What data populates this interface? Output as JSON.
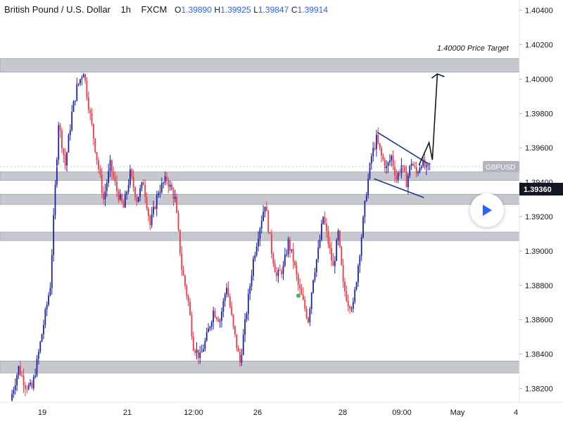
{
  "header": {
    "symbol": "British Pound / U.S. Dollar",
    "interval": "1h",
    "exchange": "FXCM",
    "o_label": "O",
    "o_value": "1.39890",
    "h_label": "H",
    "h_value": "1.39925",
    "l_label": "L",
    "l_value": "1.39847",
    "c_label": "C",
    "c_value": "1.39914"
  },
  "colors": {
    "up": "#1e22aa",
    "down": "#f23645",
    "zone": "#b2b5be",
    "trend": "#1e3a8a",
    "price_tag": "#131722",
    "symbol_tag": "#b2b5be"
  },
  "chart_data": {
    "type": "candlestick",
    "ylim": [
      1.3812,
      1.4046
    ],
    "y_ticks": [
      "1.40400",
      "1.40200",
      "1.40000",
      "1.39800",
      "1.39600",
      "1.39400",
      "1.39200",
      "1.39000",
      "1.38800",
      "1.38600",
      "1.38400",
      "1.38200"
    ],
    "x_ticks": [
      "19",
      "21",
      "12:00",
      "26",
      "28",
      "09:00",
      "May",
      "4"
    ],
    "symbol_tag": "GBPUSD",
    "last_price_label": "1.39360",
    "annotation": "1.40000 Price Target",
    "green_dot_value": 1.3874,
    "zones": [
      {
        "y1": 1.4012,
        "y2": 1.4004
      },
      {
        "y1": 1.3946,
        "y2": 1.3941
      },
      {
        "y1": 1.3933,
        "y2": 1.3927
      },
      {
        "y1": 1.3911,
        "y2": 1.3906
      },
      {
        "y1": 1.3836,
        "y2": 1.3829
      }
    ],
    "path": [
      [
        0,
        1.3813
      ],
      [
        5,
        1.3832
      ],
      [
        9,
        1.3822
      ],
      [
        13,
        1.382
      ],
      [
        16,
        1.3835
      ],
      [
        24,
        1.388
      ],
      [
        29,
        1.3975
      ],
      [
        33,
        1.395
      ],
      [
        37,
        1.398
      ],
      [
        40,
        1.3995
      ],
      [
        44,
        1.4005
      ],
      [
        47,
        1.3985
      ],
      [
        51,
        1.396
      ],
      [
        56,
        1.393
      ],
      [
        60,
        1.395
      ],
      [
        64,
        1.3935
      ],
      [
        68,
        1.3925
      ],
      [
        72,
        1.3945
      ],
      [
        76,
        1.393
      ],
      [
        80,
        1.394
      ],
      [
        84,
        1.3915
      ],
      [
        89,
        1.3935
      ],
      [
        94,
        1.3942
      ],
      [
        99,
        1.393
      ],
      [
        103,
        1.389
      ],
      [
        107,
        1.387
      ],
      [
        110,
        1.3845
      ],
      [
        114,
        1.3838
      ],
      [
        118,
        1.385
      ],
      [
        122,
        1.3865
      ],
      [
        126,
        1.386
      ],
      [
        130,
        1.388
      ],
      [
        134,
        1.3855
      ],
      [
        138,
        1.3835
      ],
      [
        142,
        1.3865
      ],
      [
        146,
        1.3895
      ],
      [
        149,
        1.391
      ],
      [
        153,
        1.3928
      ],
      [
        157,
        1.39
      ],
      [
        160,
        1.3885
      ],
      [
        164,
        1.389
      ],
      [
        167,
        1.3905
      ],
      [
        170,
        1.3895
      ],
      [
        173,
        1.388
      ],
      [
        176,
        1.387
      ],
      [
        179,
        1.386
      ],
      [
        182,
        1.3885
      ],
      [
        185,
        1.39
      ],
      [
        188,
        1.392
      ],
      [
        191,
        1.3905
      ],
      [
        194,
        1.389
      ],
      [
        197,
        1.391
      ],
      [
        200,
        1.388
      ],
      [
        203,
        1.387
      ],
      [
        206,
        1.3868
      ],
      [
        210,
        1.39
      ],
      [
        214,
        1.3935
      ],
      [
        217,
        1.3955
      ],
      [
        220,
        1.3965
      ],
      [
        223,
        1.3955
      ],
      [
        226,
        1.3948
      ],
      [
        229,
        1.3955
      ],
      [
        232,
        1.3942
      ],
      [
        235,
        1.395
      ],
      [
        238,
        1.394
      ],
      [
        241,
        1.3952
      ],
      [
        244,
        1.3945
      ],
      [
        247,
        1.3952
      ],
      [
        250,
        1.3947
      ],
      [
        252,
        1.395
      ]
    ],
    "n_candles": 252,
    "channel": {
      "upper": [
        [
          220,
          1.3969
        ],
        [
          250,
          1.3951
        ]
      ],
      "lower": [
        [
          218,
          1.3942
        ],
        [
          248,
          1.3931
        ]
      ]
    },
    "target_arrow": [
      [
        245,
        1.395
      ],
      [
        251,
        1.3963
      ],
      [
        253,
        1.3953
      ],
      [
        256,
        1.4003
      ]
    ]
  }
}
